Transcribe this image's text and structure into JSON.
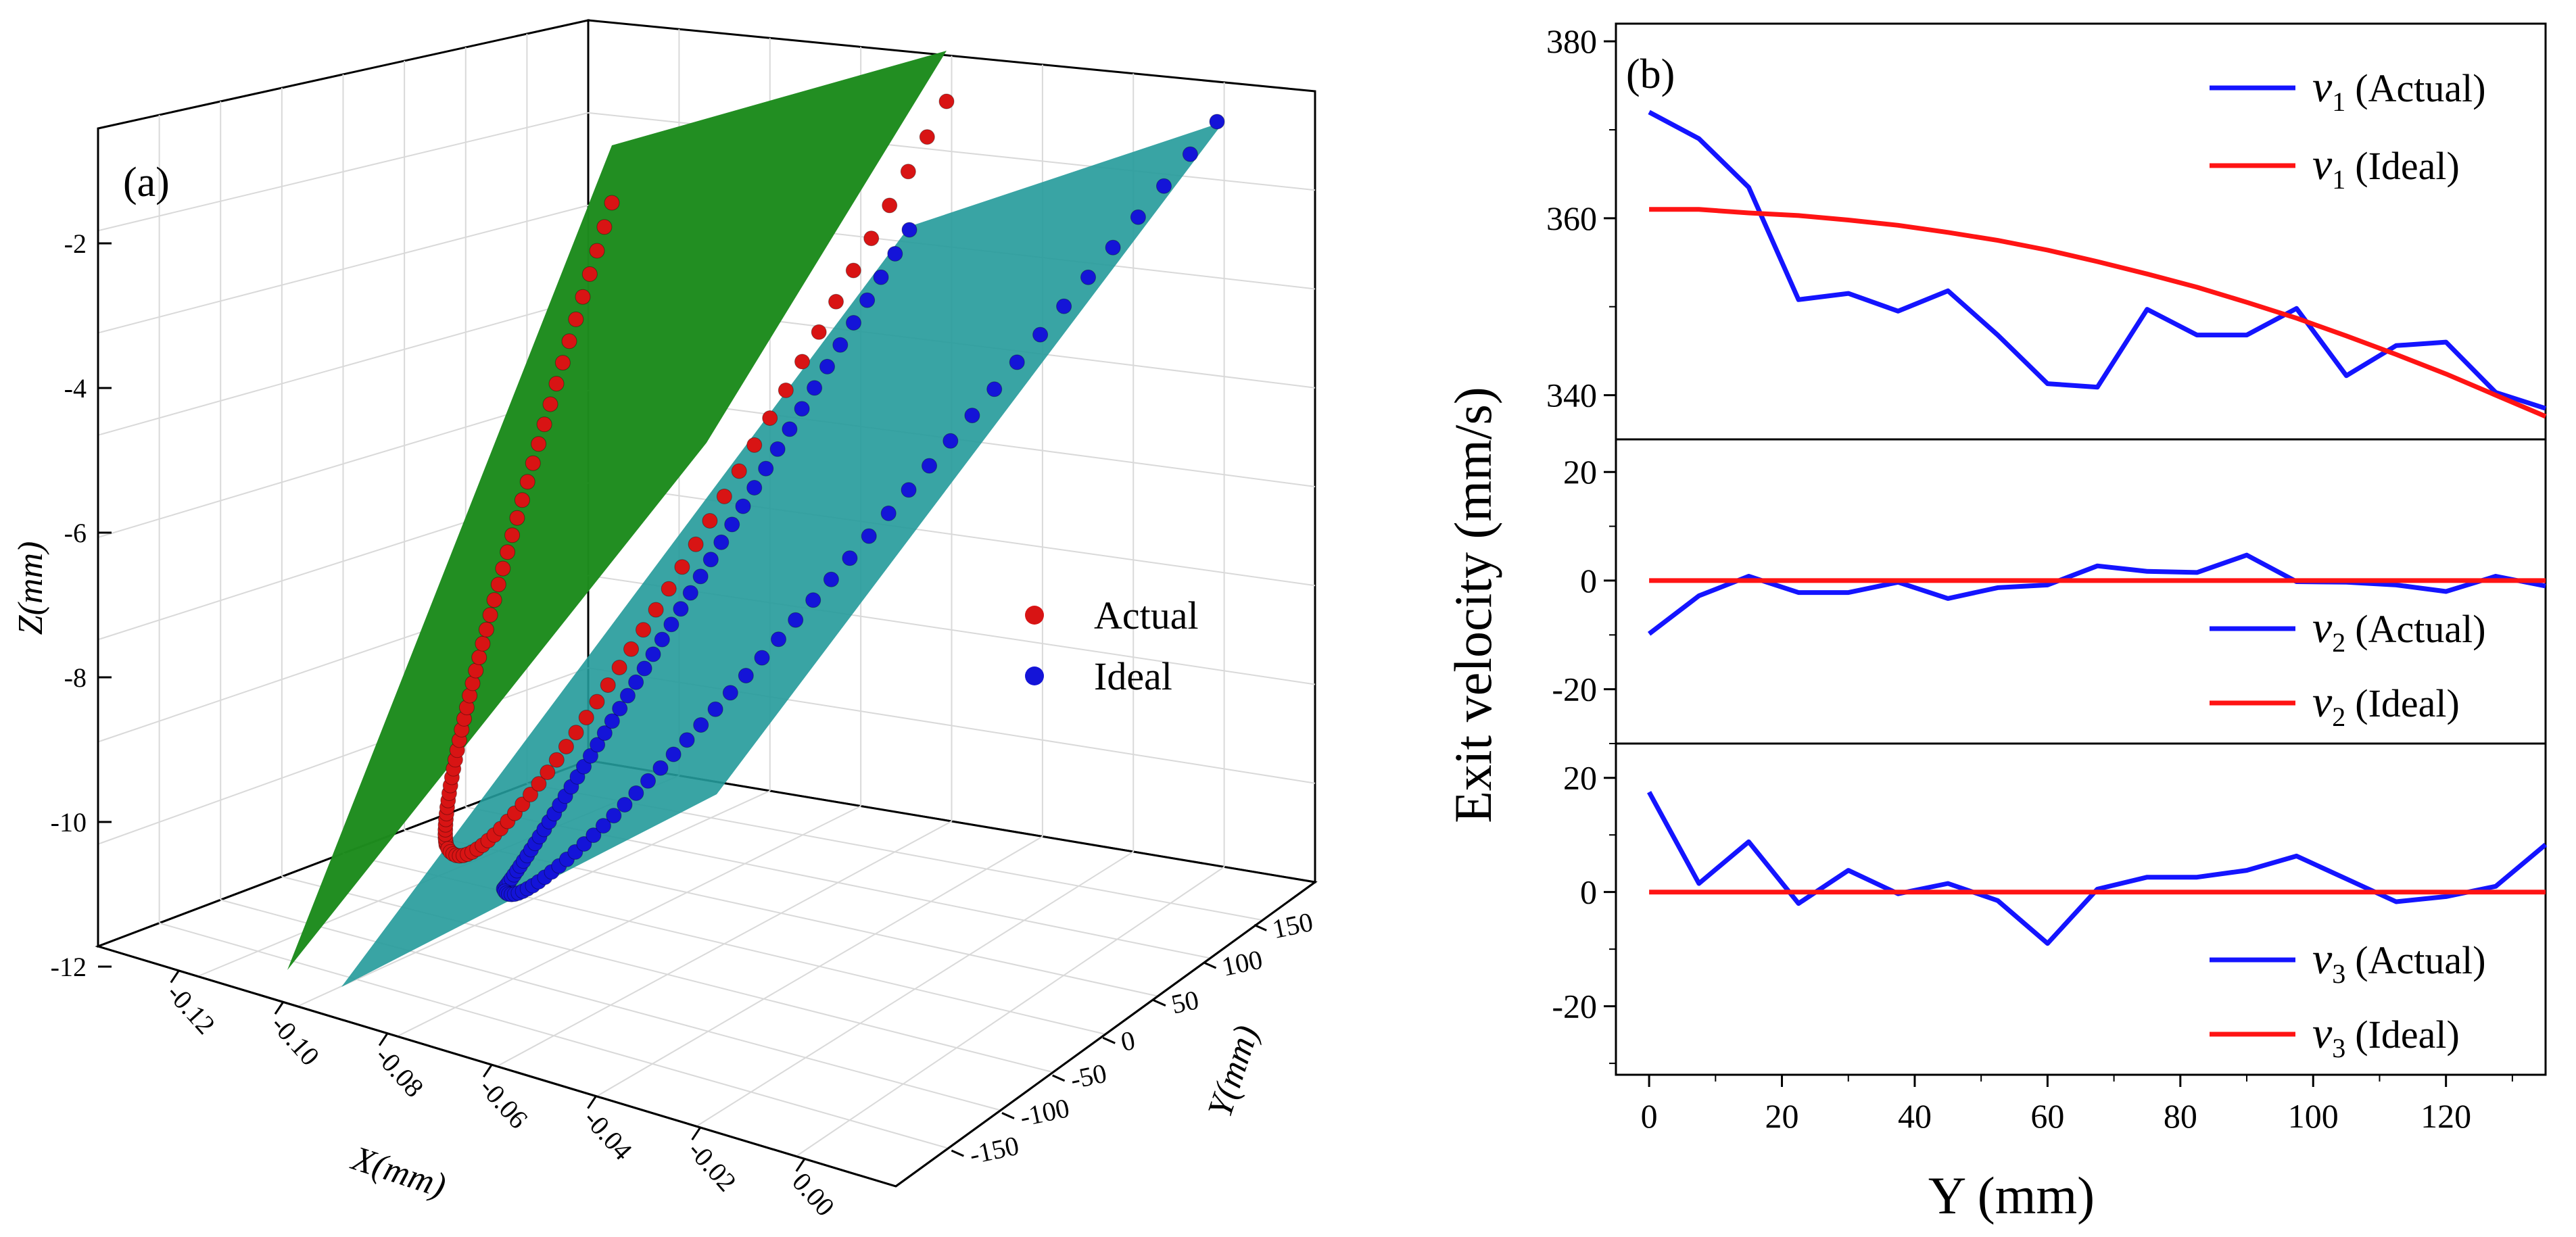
{
  "chart_data": [
    {
      "type": "scatter",
      "panel_label": "(a)",
      "projection": "3d",
      "xlabel": "X(mm)",
      "ylabel": "Y(mm)",
      "zlabel": "Z(mm)",
      "x_ticks": [
        "-0.12",
        "-0.10",
        "-0.08",
        "-0.06",
        "-0.04",
        "-0.02",
        "0.00"
      ],
      "y_ticks": [
        "-150",
        "-100",
        "-50",
        "0",
        "50",
        "100",
        "150"
      ],
      "z_ticks": [
        "-2",
        "-4",
        "-6",
        "-8",
        "-10",
        "-12"
      ],
      "xlim": [
        -0.12,
        0.0
      ],
      "ylim": [
        -150,
        150
      ],
      "zlim": [
        -12,
        -1
      ],
      "series": [
        {
          "name": "Actual",
          "color": "#d81414"
        },
        {
          "name": "Ideal",
          "color": "#1414d8"
        }
      ],
      "planes": [
        {
          "name": "actual-plane",
          "color": "#1e8c1e"
        },
        {
          "name": "ideal-plane",
          "color": "#239a9a"
        }
      ],
      "legend": [
        {
          "label": "Actual",
          "color": "#d81414"
        },
        {
          "label": "Ideal",
          "color": "#1414d8"
        }
      ]
    },
    {
      "type": "line",
      "panel_label": "(b)",
      "xlabel": "Y (mm)",
      "ylabel": "Exit velocity (mm/s)",
      "x_ticks": [
        "0",
        "20",
        "40",
        "60",
        "80",
        "100",
        "120"
      ],
      "xlim": [
        -5,
        135
      ],
      "subplots": [
        {
          "name": "v1",
          "ylim": [
            335,
            382
          ],
          "yticks": [
            "380",
            "360",
            "340"
          ],
          "series": [
            {
              "name": "v1 (Actual)",
              "legend_symbol": "v",
              "legend_sub": "1",
              "legend_suffix": "(Actual)",
              "color": "#1414ff",
              "x": [
                0,
                7.5,
                15,
                22.5,
                30,
                37.5,
                45,
                52.5,
                60,
                67.5,
                75,
                82.5,
                90,
                97.5,
                105,
                112.5,
                120,
                127.5,
                135
              ],
              "y": [
                372,
                369,
                363.5,
                350.8,
                351.5,
                349.5,
                351.8,
                346.8,
                341.3,
                340.9,
                349.7,
                346.8,
                346.8,
                349.8,
                342.2,
                345.6,
                346,
                340.3,
                338.5
              ]
            },
            {
              "name": "v1 (Ideal)",
              "legend_symbol": "v",
              "legend_sub": "1",
              "legend_suffix": "(Ideal)",
              "color": "#ff1414",
              "x": [
                0,
                7.5,
                15,
                22.5,
                30,
                37.5,
                45,
                52.5,
                60,
                67.5,
                75,
                82.5,
                90,
                97.5,
                105,
                112.5,
                120,
                127.5,
                135
              ],
              "y": [
                361,
                361,
                360.6,
                360.3,
                359.8,
                359.2,
                358.4,
                357.5,
                356.4,
                355.1,
                353.7,
                352.2,
                350.5,
                348.7,
                346.7,
                344.6,
                342.4,
                340,
                337.6
              ]
            }
          ]
        },
        {
          "name": "v2",
          "ylim": [
            -30,
            26
          ],
          "yticks": [
            "20",
            "0",
            "-20"
          ],
          "series": [
            {
              "name": "v2 (Actual)",
              "legend_symbol": "v",
              "legend_sub": "2",
              "legend_suffix": "(Actual)",
              "color": "#1414ff",
              "x": [
                0,
                7.5,
                15,
                22.5,
                30,
                37.5,
                45,
                52.5,
                60,
                67.5,
                75,
                82.5,
                90,
                97.5,
                105,
                112.5,
                120,
                127.5,
                135
              ],
              "y": [
                -9.8,
                -2.8,
                0.8,
                -2.2,
                -2.2,
                -0.3,
                -3.3,
                -1.3,
                -0.8,
                2.7,
                1.7,
                1.5,
                4.7,
                -0.2,
                -0.3,
                -0.8,
                -2,
                0.8,
                -1
              ]
            },
            {
              "name": "v2 (Ideal)",
              "legend_symbol": "v",
              "legend_sub": "2",
              "legend_suffix": "(Ideal)",
              "color": "#ff1414",
              "x": [
                0,
                135
              ],
              "y": [
                0,
                0
              ]
            }
          ]
        },
        {
          "name": "v3",
          "ylim": [
            -32,
            26
          ],
          "yticks": [
            "20",
            "0",
            "-20"
          ],
          "series": [
            {
              "name": "v3 (Actual)",
              "legend_symbol": "v",
              "legend_sub": "3",
              "legend_suffix": "(Actual)",
              "color": "#1414ff",
              "x": [
                0,
                7.5,
                15,
                22.5,
                30,
                37.5,
                45,
                52.5,
                60,
                67.5,
                75,
                82.5,
                90,
                97.5,
                105,
                112.5,
                120,
                127.5,
                135
              ],
              "y": [
                17.5,
                1.5,
                8.8,
                -2,
                3.8,
                -0.3,
                1.5,
                -1.5,
                -9,
                0.5,
                2.6,
                2.6,
                3.8,
                6.3,
                2.3,
                -1.7,
                -0.8,
                1,
                8.3
              ]
            },
            {
              "name": "v3 (Ideal)",
              "legend_symbol": "v",
              "legend_sub": "3",
              "legend_suffix": "(Ideal)",
              "color": "#ff1414",
              "x": [
                0,
                135
              ],
              "y": [
                0,
                0
              ]
            }
          ]
        }
      ]
    }
  ]
}
